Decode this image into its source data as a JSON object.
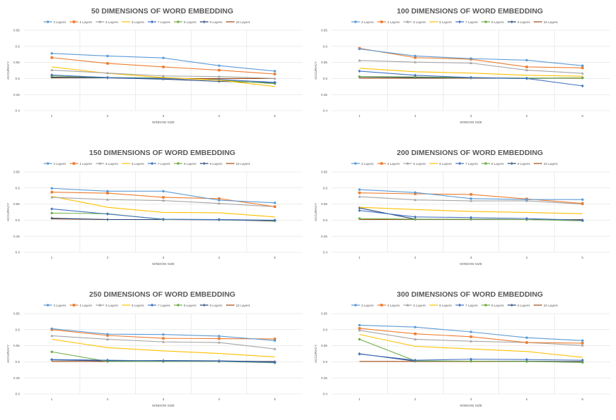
{
  "series_names": [
    "3 Layers",
    "4 Layers",
    "5 Layers",
    "6 Layers",
    "7 Layers",
    "8 Layers",
    "9 Layers",
    "10 Layers"
  ],
  "series_colors": [
    "#5B9BD5",
    "#ED7D31",
    "#A5A5A5",
    "#FFC000",
    "#4472C4",
    "#70AD47",
    "#264478",
    "#9E480E"
  ],
  "series_markers": [
    "circle",
    "square",
    "triangle",
    "none",
    "diamond",
    "circle",
    "plus",
    "none"
  ],
  "chart_data": [
    {
      "type": "line",
      "title": "50 DIMENSIONS OF WORD EMBEDDING",
      "xlabel": "WINDOW SIZE",
      "ylabel": "ACCURACY",
      "x": [
        "1",
        "2",
        "3",
        "4",
        "5"
      ],
      "y_ticks": [
        "0.4",
        "0.45",
        "0.5",
        "0.55",
        "0.6",
        "0.65"
      ],
      "ylim": [
        0.4,
        0.65
      ],
      "legend": "top",
      "series": [
        {
          "name": "3 Layers",
          "values": [
            0.578,
            0.57,
            0.564,
            0.54,
            0.523
          ]
        },
        {
          "name": "4 Layers",
          "values": [
            0.565,
            0.547,
            0.536,
            0.526,
            0.514
          ]
        },
        {
          "name": "5 Layers",
          "values": [
            0.526,
            0.517,
            0.508,
            0.506,
            0.5
          ]
        },
        {
          "name": "6 Layers",
          "values": [
            0.536,
            0.516,
            0.503,
            0.495,
            0.475
          ]
        },
        {
          "name": "7 Layers",
          "values": [
            0.511,
            0.503,
            0.5,
            0.497,
            0.488
          ]
        },
        {
          "name": "8 Layers",
          "values": [
            0.508,
            0.503,
            0.502,
            0.495,
            0.484
          ]
        },
        {
          "name": "9 Layers",
          "values": [
            0.504,
            0.502,
            0.498,
            0.491,
            0.487
          ]
        },
        {
          "name": "10 Layers",
          "values": [
            0.502,
            0.502,
            0.5,
            0.5,
            0.5
          ]
        }
      ]
    },
    {
      "type": "line",
      "title": "100 DIMENSIONS OF WORD EMBEDDING",
      "xlabel": "WINDOW SIZE",
      "ylabel": "ACCURACY",
      "x": [
        "1",
        "2",
        "3",
        "4",
        "5"
      ],
      "y_ticks": [
        "0.4",
        "0.45",
        "0.5",
        "0.55",
        "0.6",
        "0.65"
      ],
      "ylim": [
        0.4,
        0.65
      ],
      "legend": "top",
      "series": [
        {
          "name": "3 Layers",
          "values": [
            0.592,
            0.57,
            0.562,
            0.557,
            0.54
          ]
        },
        {
          "name": "4 Layers",
          "values": [
            0.594,
            0.565,
            0.56,
            0.536,
            0.533
          ]
        },
        {
          "name": "5 Layers",
          "values": [
            0.556,
            0.551,
            0.548,
            0.526,
            0.516
          ]
        },
        {
          "name": "6 Layers",
          "values": [
            0.532,
            0.521,
            0.517,
            0.51,
            0.507
          ]
        },
        {
          "name": "7 Layers",
          "values": [
            0.523,
            0.51,
            0.503,
            0.5,
            0.477
          ]
        },
        {
          "name": "8 Layers",
          "values": [
            0.506,
            0.505,
            0.503,
            0.501,
            0.502
          ]
        },
        {
          "name": "9 Layers",
          "values": [
            0.505,
            0.503,
            0.502,
            0.5,
            0.502
          ]
        },
        {
          "name": "10 Layers",
          "values": [
            0.501,
            0.501,
            0.501,
            0.501,
            0.501
          ]
        }
      ]
    },
    {
      "type": "line",
      "title": "150 DIMENSIONS OF WORD EMBEDDING",
      "xlabel": "WINDOW SIZE",
      "ylabel": "ACCURACY",
      "x": [
        "1",
        "2",
        "3",
        "4",
        "5"
      ],
      "y_ticks": [
        "0.4",
        "0.45",
        "0.5",
        "0.55",
        "0.6",
        "0.65"
      ],
      "ylim": [
        0.4,
        0.65
      ],
      "legend": "top",
      "series": [
        {
          "name": "3 Layers",
          "values": [
            0.599,
            0.59,
            0.59,
            0.562,
            0.554
          ]
        },
        {
          "name": "4 Layers",
          "values": [
            0.587,
            0.584,
            0.571,
            0.567,
            0.542
          ]
        },
        {
          "name": "5 Layers",
          "values": [
            0.571,
            0.564,
            0.561,
            0.552,
            0.542
          ]
        },
        {
          "name": "6 Layers",
          "values": [
            0.574,
            0.54,
            0.524,
            0.523,
            0.51
          ]
        },
        {
          "name": "7 Layers",
          "values": [
            0.535,
            0.519,
            0.503,
            0.502,
            0.5
          ]
        },
        {
          "name": "8 Layers",
          "values": [
            0.522,
            0.52,
            0.502,
            0.502,
            0.499
          ]
        },
        {
          "name": "9 Layers",
          "values": [
            0.506,
            0.502,
            0.502,
            0.501,
            0.498
          ]
        },
        {
          "name": "10 Layers",
          "values": [
            0.504,
            0.502,
            0.502,
            0.502,
            0.497
          ]
        }
      ]
    },
    {
      "type": "line",
      "title": "200 DIMENSIONS OF WORD EMBEDDING",
      "xlabel": "WINDOW SIZE",
      "ylabel": "ACCURACY",
      "x": [
        "1",
        "2",
        "3",
        "4",
        "5"
      ],
      "y_ticks": [
        "0.4",
        "0.45",
        "0.5",
        "0.55",
        "0.6",
        "0.65"
      ],
      "ylim": [
        0.4,
        0.65
      ],
      "legend": "top",
      "series": [
        {
          "name": "3 Layers",
          "values": [
            0.595,
            0.586,
            0.567,
            0.564,
            0.564
          ]
        },
        {
          "name": "4 Layers",
          "values": [
            0.585,
            0.582,
            0.58,
            0.566,
            0.552
          ]
        },
        {
          "name": "5 Layers",
          "values": [
            0.573,
            0.563,
            0.56,
            0.56,
            0.55
          ]
        },
        {
          "name": "6 Layers",
          "values": [
            0.54,
            0.533,
            0.527,
            0.524,
            0.52
          ]
        },
        {
          "name": "7 Layers",
          "values": [
            0.53,
            0.51,
            0.508,
            0.505,
            0.5
          ]
        },
        {
          "name": "8 Layers",
          "values": [
            0.505,
            0.503,
            0.503,
            0.502,
            0.498
          ]
        },
        {
          "name": "9 Layers",
          "values": [
            0.538,
            0.503,
            0.503,
            0.502,
            0.5
          ]
        },
        {
          "name": "10 Layers",
          "values": [
            0.502,
            0.502,
            0.502,
            0.502,
            0.502
          ]
        }
      ]
    },
    {
      "type": "line",
      "title": "250 DIMENSIONS OF WORD EMBEDDING",
      "xlabel": "WINDOW SIZE",
      "ylabel": "ACCURACY",
      "x": [
        "1",
        "2",
        "3",
        "4",
        "5"
      ],
      "y_ticks": [
        "0.4",
        "0.45",
        "0.5",
        "0.55",
        "0.6",
        "0.65"
      ],
      "ylim": [
        0.4,
        0.65
      ],
      "legend": "top",
      "series": [
        {
          "name": "3 Layers",
          "values": [
            0.603,
            0.586,
            0.585,
            0.58,
            0.566
          ]
        },
        {
          "name": "4 Layers",
          "values": [
            0.6,
            0.582,
            0.573,
            0.572,
            0.571
          ]
        },
        {
          "name": "5 Layers",
          "values": [
            0.581,
            0.57,
            0.562,
            0.56,
            0.54
          ]
        },
        {
          "name": "6 Layers",
          "values": [
            0.57,
            0.544,
            0.534,
            0.526,
            0.515
          ]
        },
        {
          "name": "7 Layers",
          "values": [
            0.507,
            0.505,
            0.503,
            0.502,
            0.498
          ]
        },
        {
          "name": "8 Layers",
          "values": [
            0.531,
            0.501,
            0.501,
            0.501,
            0.497
          ]
        },
        {
          "name": "9 Layers",
          "values": [
            0.506,
            0.503,
            0.504,
            0.503,
            0.5
          ]
        },
        {
          "name": "10 Layers",
          "values": [
            0.501,
            0.501,
            0.501,
            0.501,
            0.501
          ]
        }
      ]
    },
    {
      "type": "line",
      "title": "300 DIMENSIONS OF WORD EMBEDDING",
      "xlabel": "WINDOW SIZE",
      "ylabel": "ACCURACY",
      "x": [
        "1",
        "2",
        "3",
        "4",
        "5"
      ],
      "y_ticks": [
        "0.4",
        "0.45",
        "0.5",
        "0.55",
        "0.6",
        "0.65"
      ],
      "ylim": [
        0.4,
        0.65
      ],
      "legend": "top",
      "series": [
        {
          "name": "3 Layers",
          "values": [
            0.614,
            0.608,
            0.593,
            0.575,
            0.566
          ]
        },
        {
          "name": "4 Layers",
          "values": [
            0.604,
            0.587,
            0.578,
            0.56,
            0.558
          ]
        },
        {
          "name": "5 Layers",
          "values": [
            0.598,
            0.57,
            0.564,
            0.56,
            0.551
          ]
        },
        {
          "name": "6 Layers",
          "values": [
            0.585,
            0.548,
            0.54,
            0.532,
            0.514
          ]
        },
        {
          "name": "7 Layers",
          "values": [
            0.524,
            0.505,
            0.508,
            0.507,
            0.505
          ]
        },
        {
          "name": "8 Layers",
          "values": [
            0.57,
            0.503,
            0.502,
            0.501,
            0.498
          ]
        },
        {
          "name": "9 Layers",
          "values": [
            0.525,
            0.502,
            0.502,
            0.502,
            0.5
          ]
        },
        {
          "name": "10 Layers",
          "values": [
            0.501,
            0.501,
            0.501,
            0.501,
            0.501
          ]
        }
      ]
    }
  ]
}
